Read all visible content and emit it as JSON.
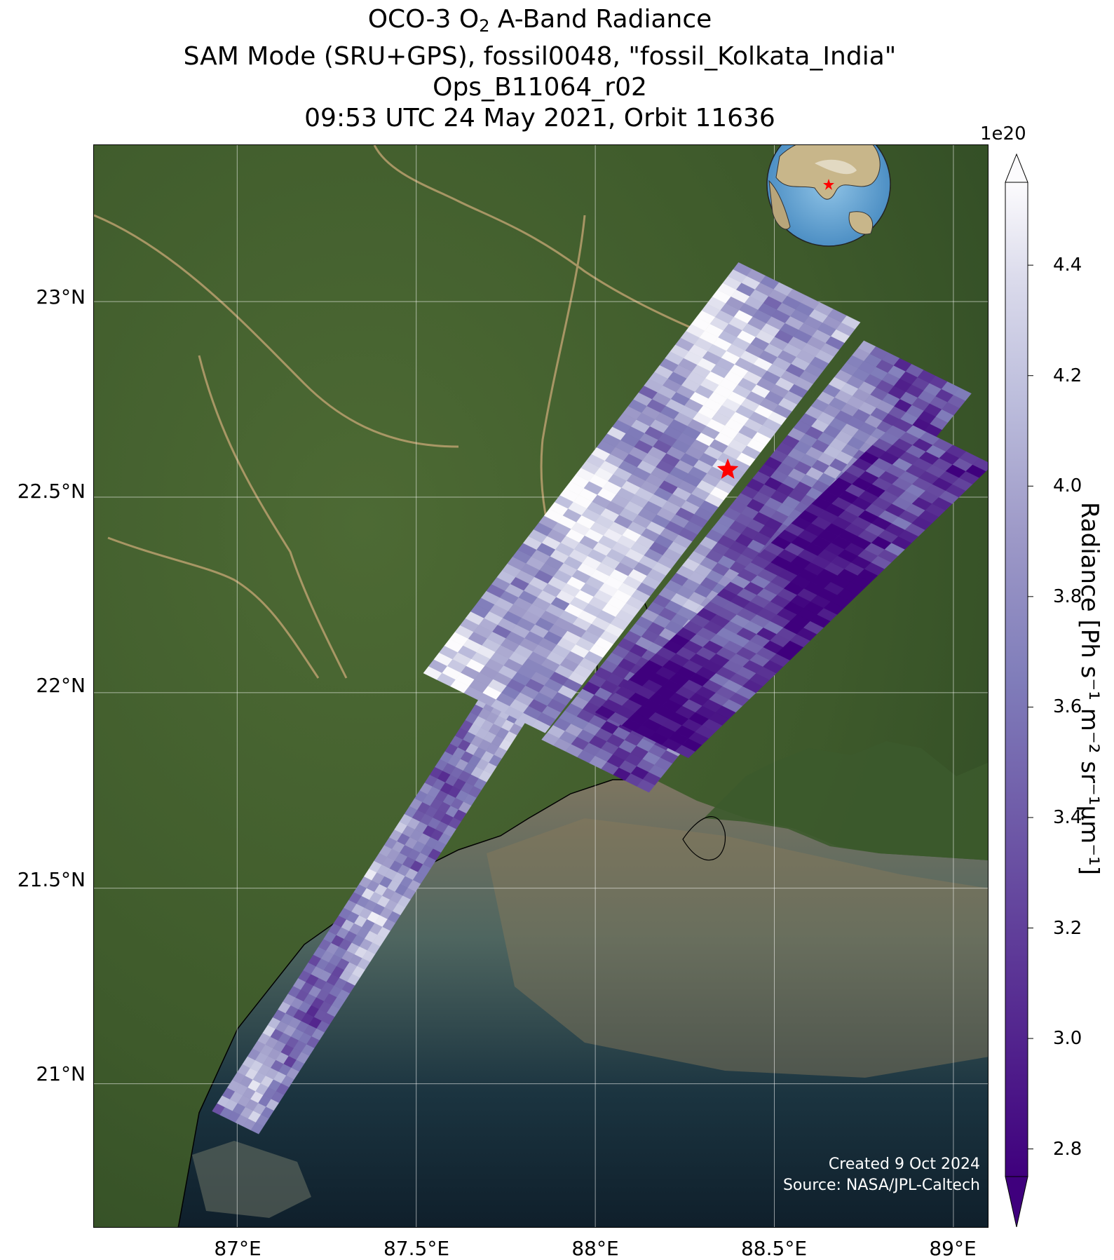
{
  "title": {
    "line1_pre": "OCO-3 O",
    "line1_sub": "2",
    "line1_post": " A-Band Radiance",
    "line2": "SAM Mode (SRU+GPS), fossil0048, \"fossil_Kolkata_India\"",
    "line3": "Ops_B11064_r02",
    "line4": "09:53 UTC 24 May 2021, Orbit 11636"
  },
  "map": {
    "extent_lon": [
      86.6,
      89.1
    ],
    "extent_lat": [
      20.63,
      23.4
    ],
    "lat_ticks": [
      {
        "value": 23.0,
        "label": "23°N"
      },
      {
        "value": 22.5,
        "label": "22.5°N"
      },
      {
        "value": 22.0,
        "label": "22°N"
      },
      {
        "value": 21.5,
        "label": "21.5°N"
      },
      {
        "value": 21.0,
        "label": "21°N"
      }
    ],
    "lon_ticks": [
      {
        "value": 87.0,
        "label": "87°E"
      },
      {
        "value": 87.5,
        "label": "87.5°E"
      },
      {
        "value": 88.0,
        "label": "88°E"
      },
      {
        "value": 88.5,
        "label": "88.5°E"
      },
      {
        "value": 89.0,
        "label": "89°E"
      }
    ],
    "target": {
      "lon": 88.37,
      "lat": 22.57,
      "marker": "red-star",
      "color": "#ff0000"
    },
    "basemap": "satellite-imagery",
    "inset_globe": {
      "marker": "red-star",
      "region": "Asia"
    },
    "credit_line1": "Created 9 Oct 2024",
    "credit_line2": "Source: NASA/JPL-Caltech"
  },
  "colorbar": {
    "colormap": "Purples_r",
    "min": 2.75,
    "max": 4.55,
    "extend": "both",
    "exponent_label": "1e20",
    "ticks": [
      "2.8",
      "3.0",
      "3.2",
      "3.4",
      "3.6",
      "3.8",
      "4.0",
      "4.2",
      "4.4"
    ],
    "tick_values": [
      2.8,
      3.0,
      3.2,
      3.4,
      3.6,
      3.8,
      4.0,
      4.2,
      4.4
    ],
    "label": "Radiance [Ph s⁻¹ m⁻² sr⁻¹μm⁻¹]",
    "color_low": "#3f007d",
    "color_mid": "#9e9ac8",
    "color_high": "#fcfbfd"
  }
}
